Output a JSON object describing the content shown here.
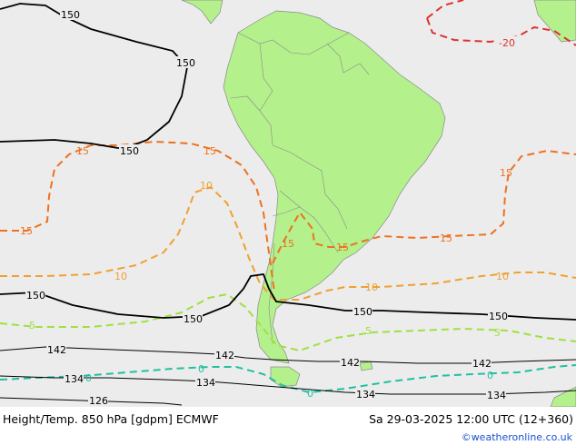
{
  "map": {
    "background_color": "#ececec",
    "land_color": "#b4f08c",
    "contour_colors": {
      "height": "#000000",
      "temp_minus20": "#e03030",
      "temp_15": "#f07020",
      "temp_10": "#f0a030",
      "temp_5": "#a0e040",
      "temp_0": "#20c0a0"
    },
    "height_labels": [
      "150",
      "150",
      "150",
      "150",
      "150",
      "150",
      "150",
      "142",
      "142",
      "142",
      "142",
      "134",
      "134",
      "134",
      "134",
      "126"
    ],
    "temp_labels": [
      "-20",
      "15",
      "15",
      "15",
      "15",
      "15",
      "15",
      "15",
      "10",
      "10",
      "10",
      "10",
      "5",
      "5",
      "5",
      "0",
      "0",
      "0",
      "0"
    ]
  },
  "footer": {
    "title_left": "Height/Temp. 850 hPa [gdpm] ECMWF",
    "title_right": "Sa 29-03-2025 12:00 UTC (12+360)",
    "credit": "©weatheronline.co.uk"
  }
}
